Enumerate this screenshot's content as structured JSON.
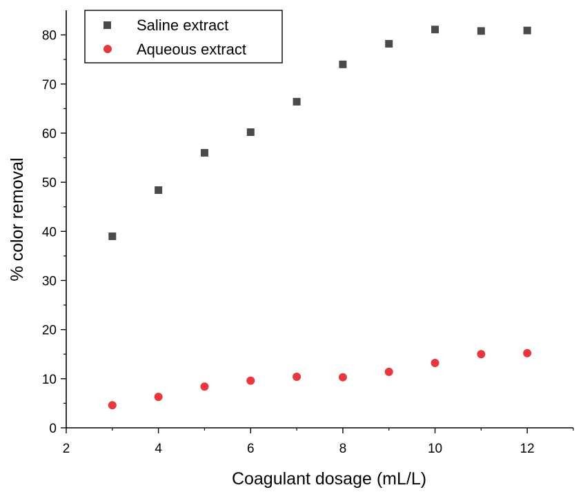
{
  "chart_data": {
    "type": "scatter",
    "title": "",
    "xlabel": "Coagulant dosage (mL/L)",
    "ylabel": "% color removal",
    "xlim": [
      2,
      13
    ],
    "ylim": [
      0,
      85
    ],
    "x_ticks": [
      2,
      4,
      6,
      8,
      10,
      12
    ],
    "y_ticks": [
      0,
      10,
      20,
      30,
      40,
      50,
      60,
      70,
      80
    ],
    "grid": false,
    "legend_position": "top-left",
    "series": [
      {
        "name": "Saline extract",
        "marker": "square",
        "color": "#4a4a4a",
        "x": [
          3,
          4,
          5,
          6,
          7,
          8,
          9,
          10,
          11,
          12
        ],
        "y": [
          39.0,
          48.4,
          56.0,
          60.2,
          66.4,
          74.0,
          78.2,
          81.1,
          80.8,
          80.9
        ]
      },
      {
        "name": "Aqueous extract",
        "marker": "circle",
        "color": "#e8383d",
        "x": [
          3,
          4,
          5,
          6,
          7,
          8,
          9,
          10,
          11,
          12
        ],
        "y": [
          4.6,
          6.3,
          8.4,
          9.6,
          10.4,
          10.3,
          11.4,
          13.2,
          15.0,
          15.2
        ]
      }
    ]
  }
}
